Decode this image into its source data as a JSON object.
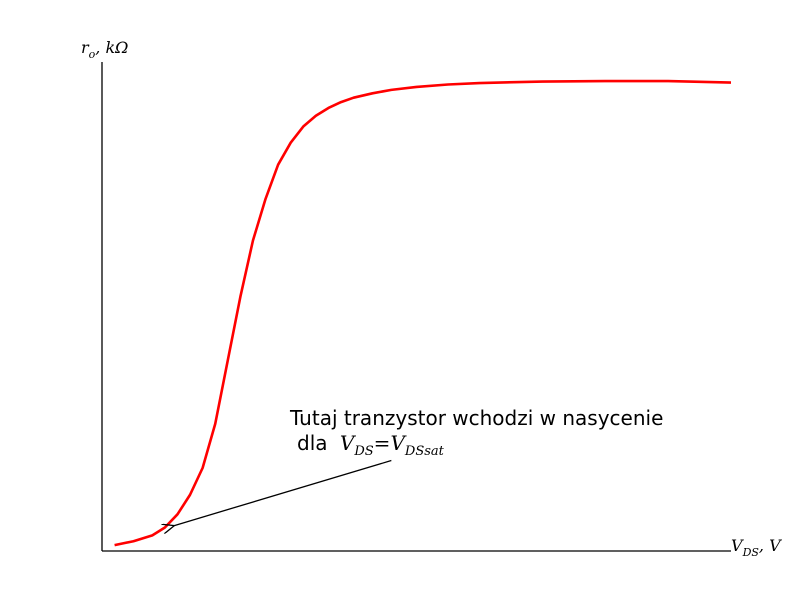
{
  "chart_data": {
    "type": "line",
    "title": "",
    "ylabel": {
      "main": "r",
      "sub": "o",
      "tail": ", kΩ"
    },
    "xlabel": {
      "main": "V",
      "sub": "DS",
      "tail": ", V"
    },
    "xlim": [
      0,
      10
    ],
    "ylim": [
      0,
      1
    ],
    "grid": false,
    "legend": "none",
    "series": [
      {
        "color": "#ff0000",
        "x": [
          0.2,
          0.5,
          0.8,
          1.0,
          1.2,
          1.4,
          1.6,
          1.8,
          2.0,
          2.2,
          2.4,
          2.6,
          2.8,
          3.0,
          3.2,
          3.4,
          3.6,
          3.8,
          4.0,
          4.3,
          4.6,
          5.0,
          5.5,
          6.0,
          7.0,
          8.0,
          9.0,
          10.0
        ],
        "y": [
          0.012,
          0.02,
          0.032,
          0.048,
          0.075,
          0.115,
          0.17,
          0.26,
          0.39,
          0.52,
          0.635,
          0.72,
          0.79,
          0.835,
          0.868,
          0.89,
          0.906,
          0.918,
          0.927,
          0.936,
          0.943,
          0.949,
          0.954,
          0.957,
          0.96,
          0.961,
          0.961,
          0.958
        ]
      }
    ],
    "annotation": {
      "line1": "Tutaj tranzystor wchodzi w nasycenie",
      "line2_prefix": "dla ",
      "v1_main": "V",
      "v1_sub": "DS",
      "equals": "=",
      "v2_main": "V",
      "v2_sub": "DSsat",
      "point": [
        1.15,
        0.052
      ],
      "text_anchor": [
        4.6,
        0.185
      ]
    }
  }
}
